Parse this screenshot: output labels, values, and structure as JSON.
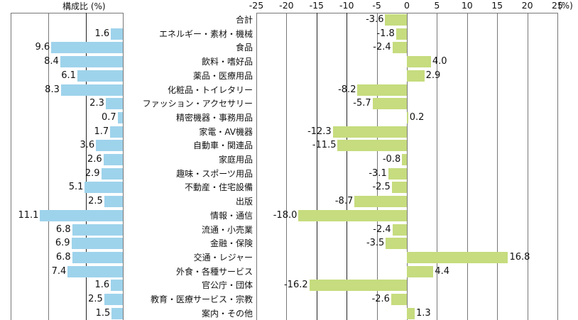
{
  "chart_data": [
    {
      "type": "bar",
      "orientation": "horizontal",
      "title": "構成比 (%)",
      "xlabel": "",
      "ylabel": "",
      "xlim": [
        0,
        15
      ],
      "reversed_x": true,
      "grid": true,
      "bar_color": "#9ED3EC",
      "categories": [
        "合計",
        "エネルギー・素材・機械",
        "食品",
        "飲料・嗜好品",
        "薬品・医療用品",
        "化粧品・トイレタリー",
        "ファッション・アクセサリー",
        "精密機器・事務用品",
        "家電・AV機器",
        "自動車・関連品",
        "家庭用品",
        "趣味・スポーツ用品",
        "不動産・住宅設備",
        "出版",
        "情報・通信",
        "流通・小売業",
        "金融・保険",
        "交通・レジャー",
        "外食・各種サービス",
        "官公庁・団体",
        "教育・医療サービス・宗教",
        "案内・その他"
      ],
      "values": [
        null,
        1.6,
        9.6,
        8.4,
        6.1,
        8.3,
        2.3,
        0.7,
        1.7,
        3.6,
        2.6,
        2.9,
        5.1,
        2.5,
        11.1,
        6.8,
        6.9,
        6.8,
        7.4,
        1.6,
        2.5,
        1.5
      ],
      "labels": [
        "",
        "1.6",
        "9.6",
        "8.4",
        "6.1",
        "8.3",
        "2.3",
        "0.7",
        "1.7",
        "3.6",
        "2.6",
        "2.9",
        "5.1",
        "2.5",
        "11.1",
        "6.8",
        "6.9",
        "6.8",
        "7.4",
        "1.6",
        "2.5",
        "1.5"
      ]
    },
    {
      "type": "bar",
      "orientation": "horizontal",
      "title": "",
      "unit": "(%)",
      "xlabel": "",
      "ylabel": "",
      "xlim": [
        -25,
        25
      ],
      "xticks": [
        "-25",
        "-20",
        "-15",
        "-10",
        "-5",
        "0",
        "5",
        "10",
        "15",
        "20",
        "25"
      ],
      "grid": true,
      "bar_color": "#C6DC7E",
      "categories": [
        "合計",
        "エネルギー・素材・機械",
        "食品",
        "飲料・嗜好品",
        "薬品・医療用品",
        "化粧品・トイレタリー",
        "ファッション・アクセサリー",
        "精密機器・事務用品",
        "家電・AV機器",
        "自動車・関連品",
        "家庭用品",
        "趣味・スポーツ用品",
        "不動産・住宅設備",
        "出版",
        "情報・通信",
        "流通・小売業",
        "金融・保険",
        "交通・レジャー",
        "外食・各種サービス",
        "官公庁・団体",
        "教育・医療サービス・宗教",
        "案内・その他"
      ],
      "values": [
        -3.6,
        -1.8,
        -2.4,
        4.0,
        2.9,
        -8.2,
        -5.7,
        0.2,
        -12.3,
        -11.5,
        -0.8,
        -3.1,
        -2.5,
        -8.7,
        -18.0,
        -2.4,
        -3.5,
        16.8,
        4.4,
        -16.2,
        -2.6,
        1.3
      ],
      "labels": [
        "-3.6",
        "-1.8",
        "-2.4",
        "4.0",
        "2.9",
        "-8.2",
        "-5.7",
        "0.2",
        "-12.3",
        "-11.5",
        "-0.8",
        "-3.1",
        "-2.5",
        "-8.7",
        "-18.0",
        "-2.4",
        "-3.5",
        "16.8",
        "4.4",
        "-16.2",
        "-2.6",
        "1.3"
      ]
    }
  ],
  "left": {
    "title": "構成比 (%)"
  },
  "right": {
    "unit": "(%)"
  },
  "colors": {
    "share_bar": "#9ED3EC",
    "change_bar": "#C6DC7E",
    "grid": "#777777"
  }
}
